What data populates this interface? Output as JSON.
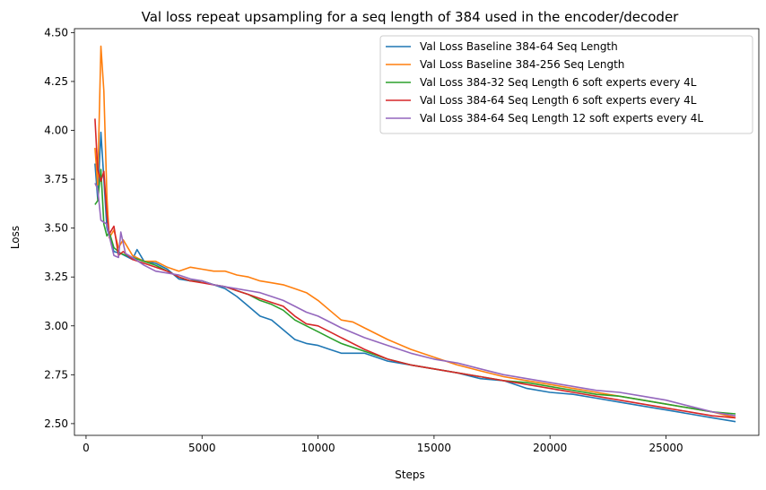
{
  "chart_data": {
    "type": "line",
    "title": "Val loss repeat upsampling for a seq length of 384 used in the encoder/decoder",
    "xlabel": "Steps",
    "ylabel": "Loss",
    "xlim": [
      -500,
      29000
    ],
    "ylim": [
      2.44,
      4.52
    ],
    "xticks": [
      0,
      5000,
      10000,
      15000,
      20000,
      25000
    ],
    "yticks": [
      2.5,
      2.75,
      3.0,
      3.25,
      3.5,
      3.75,
      4.0,
      4.25,
      4.5
    ],
    "xtick_labels": [
      "0",
      "5000",
      "10000",
      "15000",
      "20000",
      "25000"
    ],
    "ytick_labels": [
      "2.50",
      "2.75",
      "3.00",
      "3.25",
      "3.50",
      "3.75",
      "4.00",
      "4.25",
      "4.50"
    ],
    "grid": false,
    "legend_position": "top-right",
    "series": [
      {
        "name": "Val Loss Baseline 384-64 Seq Length",
        "color": "#1f77b4",
        "x": [
          384,
          500,
          640,
          768,
          900,
          1000,
          1200,
          1500,
          2000,
          2200,
          2500,
          3000,
          3500,
          4000,
          4500,
          5000,
          5500,
          6000,
          6500,
          7000,
          7500,
          8000,
          8500,
          9000,
          9500,
          10000,
          10500,
          11000,
          12000,
          13000,
          14000,
          15000,
          16000,
          17000,
          18000,
          19000,
          20000,
          21000,
          22000,
          23000,
          24000,
          25000,
          26000,
          27000,
          28000
        ],
        "y": [
          3.83,
          3.65,
          3.99,
          3.75,
          3.5,
          3.46,
          3.38,
          3.37,
          3.34,
          3.39,
          3.33,
          3.32,
          3.29,
          3.24,
          3.23,
          3.23,
          3.21,
          3.19,
          3.15,
          3.1,
          3.05,
          3.03,
          2.98,
          2.93,
          2.91,
          2.9,
          2.88,
          2.86,
          2.86,
          2.82,
          2.8,
          2.78,
          2.76,
          2.73,
          2.72,
          2.68,
          2.66,
          2.65,
          2.63,
          2.61,
          2.59,
          2.57,
          2.55,
          2.53,
          2.51
        ]
      },
      {
        "name": "Val Loss Baseline 384-256 Seq Length",
        "color": "#ff7f0e",
        "x": [
          384,
          500,
          640,
          768,
          900,
          1000,
          1200,
          1400,
          1600,
          2000,
          2500,
          3000,
          3500,
          4000,
          4500,
          5000,
          5500,
          6000,
          6500,
          7000,
          7500,
          8000,
          8500,
          9000,
          9500,
          10000,
          10500,
          11000,
          11500,
          12000,
          13000,
          14000,
          15000,
          16000,
          17000,
          18000,
          19000,
          20000,
          21000,
          22000,
          23000,
          24000,
          25000,
          26000,
          27000,
          28000
        ],
        "y": [
          3.91,
          3.72,
          4.43,
          4.2,
          3.66,
          3.45,
          3.49,
          3.4,
          3.44,
          3.36,
          3.33,
          3.33,
          3.3,
          3.28,
          3.3,
          3.29,
          3.28,
          3.28,
          3.26,
          3.25,
          3.23,
          3.22,
          3.21,
          3.19,
          3.17,
          3.13,
          3.08,
          3.03,
          3.02,
          2.99,
          2.93,
          2.88,
          2.84,
          2.8,
          2.77,
          2.74,
          2.72,
          2.7,
          2.68,
          2.66,
          2.64,
          2.62,
          2.6,
          2.58,
          2.56,
          2.53
        ]
      },
      {
        "name": "Val Loss 384-32 Seq Length 6 soft experts every 4L",
        "color": "#2ca02c",
        "x": [
          384,
          500,
          640,
          768,
          900,
          1000,
          1200,
          1500,
          2000,
          2500,
          3000,
          3500,
          4000,
          4500,
          5000,
          5500,
          6000,
          6500,
          7000,
          7500,
          8000,
          8500,
          9000,
          9500,
          10000,
          10500,
          11000,
          12000,
          13000,
          14000,
          15000,
          16000,
          17000,
          18000,
          19000,
          20000,
          21000,
          22000,
          23000,
          24000,
          25000,
          26000,
          27000,
          28000
        ],
        "y": [
          3.62,
          3.64,
          3.8,
          3.52,
          3.46,
          3.48,
          3.4,
          3.37,
          3.35,
          3.33,
          3.31,
          3.28,
          3.25,
          3.23,
          3.23,
          3.21,
          3.2,
          3.18,
          3.16,
          3.13,
          3.11,
          3.08,
          3.03,
          3.0,
          2.97,
          2.94,
          2.91,
          2.87,
          2.83,
          2.8,
          2.78,
          2.76,
          2.74,
          2.72,
          2.71,
          2.69,
          2.67,
          2.65,
          2.64,
          2.62,
          2.6,
          2.58,
          2.56,
          2.55
        ]
      },
      {
        "name": "Val Loss 384-64 Seq Length 6 soft experts every 4L",
        "color": "#d62728",
        "x": [
          384,
          500,
          640,
          768,
          900,
          1000,
          1200,
          1400,
          1600,
          2000,
          2500,
          3000,
          3500,
          4000,
          4500,
          5000,
          5500,
          6000,
          6500,
          7000,
          7500,
          8000,
          8500,
          9000,
          9500,
          10000,
          10500,
          11000,
          12000,
          13000,
          14000,
          15000,
          16000,
          17000,
          18000,
          19000,
          20000,
          21000,
          22000,
          23000,
          24000,
          25000,
          26000,
          27000,
          28000
        ],
        "y": [
          4.06,
          3.8,
          3.74,
          3.79,
          3.57,
          3.47,
          3.51,
          3.36,
          3.38,
          3.34,
          3.32,
          3.3,
          3.28,
          3.25,
          3.23,
          3.22,
          3.21,
          3.2,
          3.18,
          3.16,
          3.14,
          3.12,
          3.1,
          3.05,
          3.01,
          3.0,
          2.97,
          2.94,
          2.88,
          2.83,
          2.8,
          2.78,
          2.76,
          2.74,
          2.72,
          2.7,
          2.68,
          2.66,
          2.64,
          2.62,
          2.6,
          2.58,
          2.56,
          2.54,
          2.53
        ]
      },
      {
        "name": "Val Loss 384-64 Seq Length 12 soft experts every 4L",
        "color": "#9467bd",
        "x": [
          384,
          500,
          640,
          768,
          900,
          1000,
          1200,
          1400,
          1500,
          1700,
          2000,
          2500,
          3000,
          3500,
          4000,
          4500,
          5000,
          5500,
          6000,
          6500,
          7000,
          7500,
          8000,
          8500,
          9000,
          9500,
          10000,
          10500,
          11000,
          12000,
          13000,
          14000,
          15000,
          16000,
          17000,
          18000,
          19000,
          20000,
          21000,
          22000,
          23000,
          24000,
          25000,
          26000,
          27000,
          28000
        ],
        "y": [
          3.73,
          3.7,
          3.54,
          3.53,
          3.52,
          3.46,
          3.36,
          3.35,
          3.48,
          3.37,
          3.35,
          3.31,
          3.28,
          3.27,
          3.26,
          3.24,
          3.23,
          3.21,
          3.2,
          3.19,
          3.18,
          3.17,
          3.15,
          3.13,
          3.1,
          3.07,
          3.05,
          3.02,
          2.99,
          2.94,
          2.9,
          2.86,
          2.83,
          2.81,
          2.78,
          2.75,
          2.73,
          2.71,
          2.69,
          2.67,
          2.66,
          2.64,
          2.62,
          2.59,
          2.56,
          2.54
        ]
      }
    ]
  }
}
